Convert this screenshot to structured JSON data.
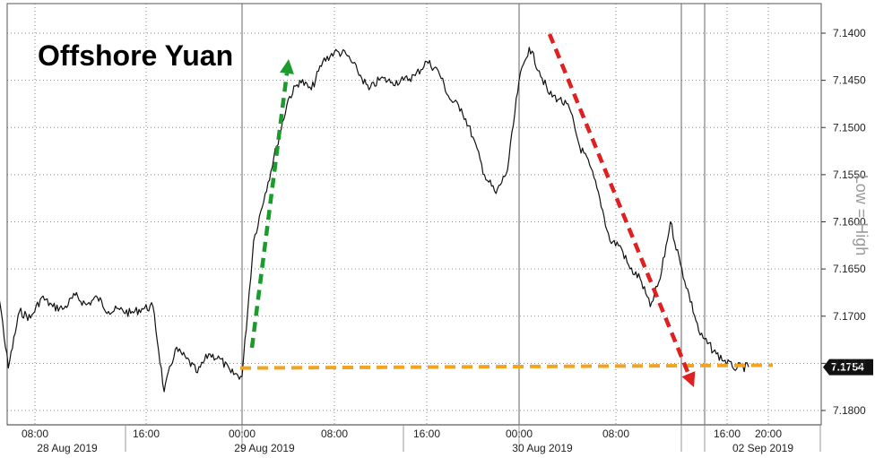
{
  "chart_data": {
    "type": "line",
    "title": "Offshore Yuan",
    "y_axis_label": "Low = High",
    "y_axis_inverted": true,
    "ylim": [
      7.1805,
      7.1395
    ],
    "y_ticks": [
      "7.1400",
      "7.1450",
      "7.1500",
      "7.1550",
      "7.1600",
      "7.1650",
      "7.1700",
      "7.1750",
      "7.1800"
    ],
    "x_tick_labels": [
      "08:00",
      "16:00",
      "00:00",
      "08:00",
      "16:00",
      "00:00",
      "08:00",
      "16:00",
      "20:00"
    ],
    "x_date_labels": [
      "28 Aug 2019",
      "29 Aug 2019",
      "30 Aug 2019",
      "02 Sep 2019"
    ],
    "last_value": "7.1754",
    "grid": true,
    "series": [
      {
        "x": [
          "28 Aug 2019 01:00",
          "28 Aug 2019 02:00",
          "28 Aug 2019 03:00",
          "28 Aug 2019 04:00",
          "28 Aug 2019 05:00",
          "28 Aug 2019 06:00",
          "28 Aug 2019 07:00",
          "28 Aug 2019 08:00",
          "28 Aug 2019 09:00",
          "28 Aug 2019 10:00",
          "28 Aug 2019 11:00",
          "28 Aug 2019 12:00",
          "28 Aug 2019 13:00",
          "28 Aug 2019 14:00",
          "28 Aug 2019 15:00",
          "28 Aug 2019 16:00",
          "28 Aug 2019 17:00",
          "28 Aug 2019 18:00",
          "28 Aug 2019 19:00",
          "28 Aug 2019 20:00",
          "28 Aug 2019 21:00",
          "28 Aug 2019 22:00",
          "28 Aug 2019 23:00",
          "29 Aug 2019 00:00",
          "29 Aug 2019 01:00",
          "29 Aug 2019 02:00",
          "29 Aug 2019 03:00",
          "29 Aug 2019 04:00",
          "29 Aug 2019 05:00",
          "29 Aug 2019 06:00",
          "29 Aug 2019 07:00",
          "29 Aug 2019 08:00",
          "29 Aug 2019 09:00",
          "29 Aug 2019 10:00",
          "29 Aug 2019 11:00",
          "29 Aug 2019 12:00",
          "29 Aug 2019 13:00",
          "29 Aug 2019 14:00",
          "29 Aug 2019 15:00",
          "29 Aug 2019 16:00",
          "29 Aug 2019 17:00",
          "29 Aug 2019 18:00",
          "29 Aug 2019 19:00",
          "29 Aug 2019 20:00",
          "29 Aug 2019 21:00",
          "29 Aug 2019 22:00",
          "29 Aug 2019 23:00",
          "30 Aug 2019 00:00",
          "30 Aug 2019 01:00",
          "30 Aug 2019 02:00",
          "30 Aug 2019 03:00",
          "30 Aug 2019 04:00",
          "30 Aug 2019 05:00",
          "30 Aug 2019 06:00",
          "30 Aug 2019 07:00",
          "30 Aug 2019 08:00",
          "30 Aug 2019 09:00",
          "30 Aug 2019 10:00",
          "30 Aug 2019 11:00",
          "30 Aug 2019 12:00",
          "30 Aug 2019 13:00",
          "30 Aug 2019 14:00",
          "30 Aug 2019 15:00",
          "30 Aug 2019 16:00",
          "02 Sep 2019 14:00",
          "02 Sep 2019 15:00",
          "02 Sep 2019 16:00",
          "02 Sep 2019 17:00"
        ],
        "values": [
          7.1673,
          7.1662,
          7.1755,
          7.1695,
          7.1702,
          7.168,
          7.169,
          7.1692,
          7.1678,
          7.1688,
          7.168,
          7.1695,
          7.1693,
          7.1697,
          7.1692,
          7.169,
          7.178,
          7.1735,
          7.1745,
          7.176,
          7.174,
          7.1745,
          7.176,
          7.1764,
          7.162,
          7.157,
          7.152,
          7.147,
          7.145,
          7.146,
          7.143,
          7.142,
          7.1422,
          7.144,
          7.146,
          7.1448,
          7.1452,
          7.145,
          7.1445,
          7.143,
          7.144,
          7.147,
          7.148,
          7.151,
          7.155,
          7.157,
          7.1545,
          7.145,
          7.1415,
          7.144,
          7.1465,
          7.147,
          7.148,
          7.152,
          7.154,
          7.1575,
          7.162,
          7.1625,
          7.165,
          7.166,
          7.169,
          7.166,
          7.16,
          7.1645,
          7.172,
          7.174,
          7.1754,
          7.1754
        ]
      }
    ]
  }
}
